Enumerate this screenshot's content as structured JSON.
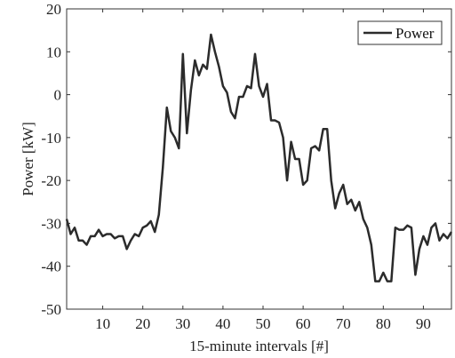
{
  "chart_data": {
    "type": "line",
    "title": "",
    "xlabel": "15-minute intervals [#]",
    "ylabel": "Power [kW]",
    "xlim": [
      1,
      97
    ],
    "ylim": [
      -50,
      20
    ],
    "xticks": [
      10,
      20,
      30,
      40,
      50,
      60,
      70,
      80,
      90
    ],
    "yticks": [
      -50,
      -40,
      -30,
      -20,
      -10,
      0,
      10,
      20
    ],
    "grid": false,
    "legend_position": "top-right",
    "series": [
      {
        "name": "Power",
        "color": "#2b2b2b",
        "x": [
          1,
          2,
          3,
          4,
          5,
          6,
          7,
          8,
          9,
          10,
          11,
          12,
          13,
          14,
          15,
          16,
          17,
          18,
          19,
          20,
          21,
          22,
          23,
          24,
          25,
          26,
          27,
          28,
          29,
          30,
          31,
          32,
          33,
          34,
          35,
          36,
          37,
          38,
          39,
          40,
          41,
          42,
          43,
          44,
          45,
          46,
          47,
          48,
          49,
          50,
          51,
          52,
          53,
          54,
          55,
          56,
          57,
          58,
          59,
          60,
          61,
          62,
          63,
          64,
          65,
          66,
          67,
          68,
          69,
          70,
          71,
          72,
          73,
          74,
          75,
          76,
          77,
          78,
          79,
          80,
          81,
          82,
          83,
          84,
          85,
          86,
          87,
          88,
          89,
          90,
          91,
          92,
          93,
          94,
          95,
          96,
          97
        ],
        "y": [
          -29,
          -32.5,
          -31,
          -34,
          -34,
          -35,
          -33,
          -33,
          -31.5,
          -33,
          -32.5,
          -32.5,
          -33.5,
          -33,
          -33,
          -36,
          -34,
          -32.5,
          -33,
          -31,
          -30.5,
          -29.5,
          -32,
          -28,
          -17,
          -3,
          -8.5,
          -10,
          -12.5,
          9.5,
          -9,
          1,
          8,
          4.5,
          7,
          6,
          14,
          10,
          6.5,
          2,
          0.5,
          -4,
          -5.5,
          -0.5,
          -0.5,
          2,
          1.5,
          9.5,
          2,
          -0.5,
          2.5,
          -6,
          -6,
          -6.5,
          -10,
          -20,
          -11,
          -15,
          -15,
          -21,
          -20,
          -12.5,
          -12,
          -13,
          -8,
          -8,
          -20,
          -26.5,
          -23,
          -21,
          -25.5,
          -24.5,
          -27,
          -25,
          -29,
          -31,
          -35,
          -43.5,
          -43.5,
          -41.5,
          -43.5,
          -43.5,
          -31,
          -31.5,
          -31.5,
          -30.5,
          -31,
          -42,
          -36,
          -33,
          -35,
          -31,
          -30,
          -34,
          -32.5,
          -33.5,
          -32
        ]
      }
    ]
  }
}
